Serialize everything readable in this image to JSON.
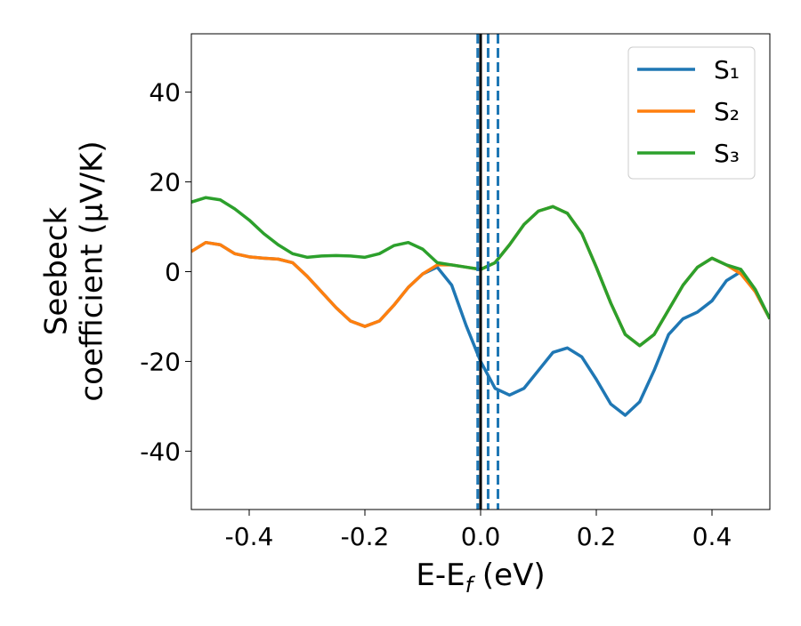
{
  "chart_data": {
    "type": "line",
    "x_label": [
      "E-E",
      "f",
      " (eV)"
    ],
    "y_label": [
      "Seebeck",
      "coefficient  (μV/K)"
    ],
    "x": [
      -0.5,
      -0.475,
      -0.45,
      -0.425,
      -0.4,
      -0.375,
      -0.35,
      -0.325,
      -0.3,
      -0.275,
      -0.25,
      -0.225,
      -0.2,
      -0.175,
      -0.15,
      -0.125,
      -0.1,
      -0.075,
      -0.05,
      -0.025,
      0,
      0.025,
      0.05,
      0.075,
      0.1,
      0.125,
      0.15,
      0.175,
      0.2,
      0.225,
      0.25,
      0.275,
      0.3,
      0.325,
      0.35,
      0.375,
      0.4,
      0.425,
      0.45,
      0.475,
      0.5
    ],
    "series": [
      {
        "name": "S₁",
        "color": "#1f77b4",
        "values": [
          4.5,
          6.5,
          6,
          4,
          3.3,
          3,
          2.8,
          2,
          -1,
          -4.5,
          -8,
          -11,
          -12.2,
          -11,
          -7.5,
          -3.5,
          -0.5,
          1,
          -3,
          -12,
          -20,
          -26,
          -27.5,
          -26,
          -22,
          -18,
          -17,
          -19,
          -24,
          -29.5,
          -32,
          -29,
          -22,
          -14,
          -10.5,
          -9,
          -6.5,
          -2,
          0,
          -4.5,
          -10.5
        ]
      },
      {
        "name": "S₂",
        "color": "#ff7f0e",
        "values": [
          4.5,
          6.5,
          6,
          4,
          3.3,
          3,
          2.8,
          2,
          -1,
          -4.5,
          -8,
          -11,
          -12.2,
          -11,
          -7.5,
          -3.5,
          -0.5,
          1.5,
          1.5,
          1,
          0.5,
          2,
          6,
          10.5,
          13.5,
          14.5,
          13,
          8.5,
          1,
          -7,
          -14,
          -16.5,
          -14,
          -8.5,
          -3,
          1,
          3,
          1.5,
          -0.5,
          -4.5,
          -10.5
        ]
      },
      {
        "name": "S₃",
        "color": "#2ca02c",
        "values": [
          15.5,
          16.5,
          16,
          14,
          11.5,
          8.5,
          6,
          4,
          3.2,
          3.5,
          3.6,
          3.5,
          3.2,
          4,
          5.8,
          6.5,
          5,
          2,
          1.5,
          1,
          0.5,
          2,
          6,
          10.5,
          13.5,
          14.5,
          13,
          8.5,
          1,
          -7,
          -14,
          -16.5,
          -14,
          -8.5,
          -3,
          1,
          3,
          1.5,
          0.5,
          -4,
          -10.5
        ]
      }
    ],
    "vlines": [
      {
        "x": -0.005,
        "color": "#1f77b4",
        "dashed": true
      },
      {
        "x": 0.013,
        "color": "#1f77b4",
        "dashed": true
      },
      {
        "x": 0.03,
        "color": "#1f77b4",
        "dashed": true
      },
      {
        "x": 0,
        "color": "#000000",
        "dashed": false
      }
    ],
    "xlim": [
      -0.5,
      0.5
    ],
    "ylim": [
      -53,
      53
    ],
    "xticks": [
      -0.4,
      -0.2,
      {
        "value": 0,
        "label": "0.0"
      },
      0.2,
      0.4
    ],
    "yticks": [
      -40,
      -20,
      0,
      20,
      40
    ],
    "legend": "upper right"
  }
}
